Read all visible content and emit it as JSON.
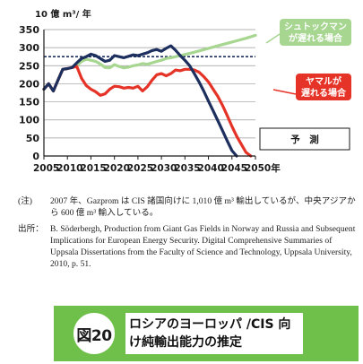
{
  "chart_data": {
    "type": "line",
    "ylabel": "10 億 m³/ 年",
    "x_ticks": [
      "2005",
      "2010",
      "2015",
      "2020",
      "2025",
      "2030",
      "2035",
      "2040",
      "2045",
      "2050年"
    ],
    "y_ticks": [
      "0",
      "50",
      "100",
      "150",
      "200",
      "250",
      "300",
      "350"
    ],
    "xlim": [
      2005,
      2050
    ],
    "ylim": [
      0,
      350
    ],
    "grid": "horizontal",
    "reference_line": {
      "value": 275,
      "style": "dashed"
    },
    "series": [
      {
        "name": "シュトックマンが遅れる場合",
        "color": "#a6d690",
        "points": [
          [
            2005,
            185
          ],
          [
            2006,
            200
          ],
          [
            2007,
            180
          ],
          [
            2008,
            210
          ],
          [
            2009,
            240
          ],
          [
            2010,
            242
          ],
          [
            2011,
            245
          ],
          [
            2012,
            250
          ],
          [
            2013,
            262
          ],
          [
            2014,
            268
          ],
          [
            2015,
            265
          ],
          [
            2016,
            262
          ],
          [
            2017,
            255
          ],
          [
            2018,
            245
          ],
          [
            2019,
            244
          ],
          [
            2020,
            253
          ],
          [
            2021,
            248
          ],
          [
            2022,
            244
          ],
          [
            2023,
            246
          ],
          [
            2024,
            250
          ],
          [
            2025,
            252
          ],
          [
            2026,
            256
          ],
          [
            2027,
            254
          ],
          [
            2028,
            258
          ],
          [
            2029,
            262
          ],
          [
            2030,
            265
          ],
          [
            2031,
            270
          ],
          [
            2032,
            272
          ],
          [
            2034,
            278
          ],
          [
            2036,
            284
          ],
          [
            2038,
            291
          ],
          [
            2040,
            298
          ],
          [
            2042,
            305
          ],
          [
            2044,
            312
          ],
          [
            2046,
            319
          ],
          [
            2048,
            326
          ],
          [
            2050,
            334
          ]
        ]
      },
      {
        "name": "ヤマルが遅れる場合",
        "color": "#e53327",
        "points": [
          [
            2005,
            185
          ],
          [
            2006,
            200
          ],
          [
            2007,
            180
          ],
          [
            2008,
            210
          ],
          [
            2009,
            240
          ],
          [
            2010,
            242
          ],
          [
            2011,
            245
          ],
          [
            2012,
            248
          ],
          [
            2013,
            215
          ],
          [
            2014,
            195
          ],
          [
            2015,
            185
          ],
          [
            2016,
            178
          ],
          [
            2017,
            168
          ],
          [
            2018,
            172
          ],
          [
            2019,
            185
          ],
          [
            2020,
            193
          ],
          [
            2021,
            192
          ],
          [
            2022,
            188
          ],
          [
            2023,
            190
          ],
          [
            2024,
            188
          ],
          [
            2025,
            193
          ],
          [
            2026,
            180
          ],
          [
            2027,
            192
          ],
          [
            2028,
            210
          ],
          [
            2029,
            225
          ],
          [
            2030,
            228
          ],
          [
            2031,
            222
          ],
          [
            2032,
            228
          ],
          [
            2033,
            238
          ],
          [
            2034,
            236
          ],
          [
            2035,
            240
          ],
          [
            2036,
            240
          ],
          [
            2037,
            238
          ],
          [
            2038,
            232
          ],
          [
            2039,
            220
          ],
          [
            2040,
            205
          ],
          [
            2041,
            185
          ],
          [
            2042,
            165
          ],
          [
            2043,
            140
          ],
          [
            2044,
            112
          ],
          [
            2045,
            82
          ],
          [
            2046,
            55
          ],
          [
            2047,
            32
          ],
          [
            2048,
            10
          ],
          [
            2049,
            0
          ]
        ]
      },
      {
        "name": "予　測",
        "color": "#1d2f5e",
        "points": [
          [
            2005,
            185
          ],
          [
            2006,
            200
          ],
          [
            2007,
            180
          ],
          [
            2008,
            210
          ],
          [
            2009,
            240
          ],
          [
            2010,
            242
          ],
          [
            2011,
            245
          ],
          [
            2012,
            258
          ],
          [
            2013,
            270
          ],
          [
            2014,
            275
          ],
          [
            2015,
            282
          ],
          [
            2016,
            278
          ],
          [
            2017,
            270
          ],
          [
            2018,
            262
          ],
          [
            2019,
            265
          ],
          [
            2020,
            278
          ],
          [
            2021,
            275
          ],
          [
            2022,
            272
          ],
          [
            2023,
            276
          ],
          [
            2024,
            280
          ],
          [
            2025,
            278
          ],
          [
            2026,
            282
          ],
          [
            2027,
            286
          ],
          [
            2028,
            292
          ],
          [
            2029,
            295
          ],
          [
            2030,
            290
          ],
          [
            2031,
            298
          ],
          [
            2032,
            305
          ],
          [
            2033,
            293
          ],
          [
            2034,
            278
          ],
          [
            2035,
            265
          ],
          [
            2036,
            250
          ],
          [
            2037,
            228
          ],
          [
            2038,
            205
          ],
          [
            2039,
            180
          ],
          [
            2040,
            152
          ],
          [
            2041,
            125
          ],
          [
            2042,
            98
          ],
          [
            2043,
            70
          ],
          [
            2044,
            42
          ],
          [
            2045,
            15
          ],
          [
            2046,
            0
          ]
        ]
      }
    ],
    "labels": {
      "green": [
        "シュトックマン",
        "が遅れる場合"
      ],
      "red": [
        "ヤマルが",
        "遅れる場合"
      ],
      "navy": "予　測"
    }
  },
  "notes": [
    {
      "tag": "(注)",
      "text": "2007 年、Gazprom は CIS 諸国向けに 1,010 億 m³ 輸出しているが、中央アジアから 600 億 m³ 輸入している。"
    },
    {
      "tag": "出所：",
      "text": "B. Söderbergh, Production from Giant Gas Fields in Norway and Russia and Subsequent Implications for European Energy Security. Digital Comprehensive Summaries of Uppsala Dissertations from the Faculty of Science and Technology, Uppsala University, 2010, p. 51."
    }
  ],
  "figure": {
    "number": "図20",
    "title": "ロシアのヨーロッパ /CIS 向け純輸出能力の推定"
  },
  "colors": {
    "green": "#a6d690",
    "red": "#e53327",
    "navy": "#1d2f5e",
    "banner": "#6fc04a"
  }
}
